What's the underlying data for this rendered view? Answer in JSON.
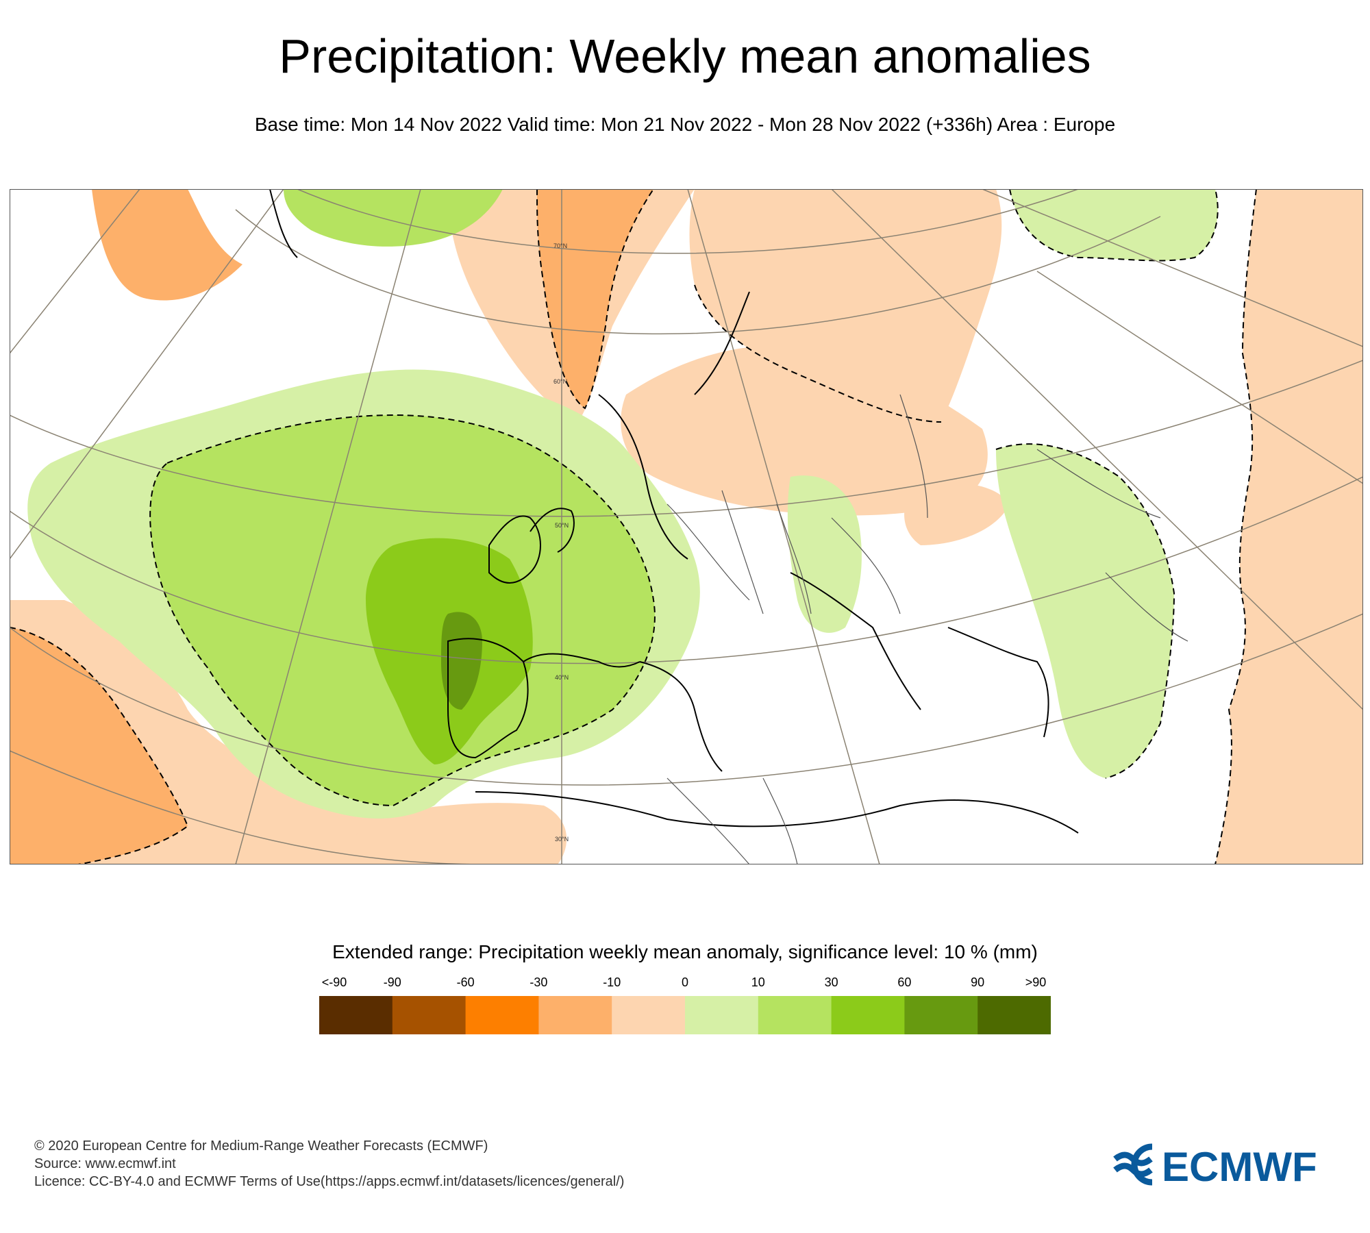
{
  "header": {
    "title": "Precipitation: Weekly mean anomalies",
    "subtitle": "Base time: Mon 14 Nov 2022 Valid time: Mon 21 Nov 2022 - Mon 28 Nov 2022 (+336h) Area : Europe"
  },
  "map": {
    "latitude_labels": [
      "70°N",
      "60°N",
      "50°N",
      "40°N",
      "30°N"
    ],
    "colors": {
      "dry_strong": "#fdb06a",
      "dry_light": "#fdd5b0",
      "wet_light": "#d6f0a6",
      "wet_mid": "#b5e360",
      "wet_strong": "#8ccb1a",
      "wet_very": "#679a10",
      "coast": "#000000",
      "border": "#555555",
      "grid": "#8a8272"
    }
  },
  "legend": {
    "title": "Extended range: Precipitation weekly mean anomaly, significance level: 10 % (mm)",
    "tick_labels": [
      "<-90",
      "-90",
      "-60",
      "-30",
      "-10",
      "0",
      "10",
      "30",
      "60",
      "90",
      ">90"
    ],
    "colors": [
      "#5a2d00",
      "#a65200",
      "#fd7f00",
      "#fdb06a",
      "#fdd5b0",
      "#d6f0a6",
      "#b5e360",
      "#8ccb1a",
      "#679a10",
      "#4d6a00"
    ]
  },
  "footer": {
    "copyright": "© 2020 European Centre for Medium-Range Weather Forecasts (ECMWF)",
    "source": "Source: www.ecmwf.int",
    "licence": "Licence: CC-BY-4.0 and ECMWF Terms of Use(https://apps.ecmwf.int/datasets/licences/general/)"
  },
  "logo": {
    "text": "ECMWF",
    "color": "#0a5a9c"
  }
}
